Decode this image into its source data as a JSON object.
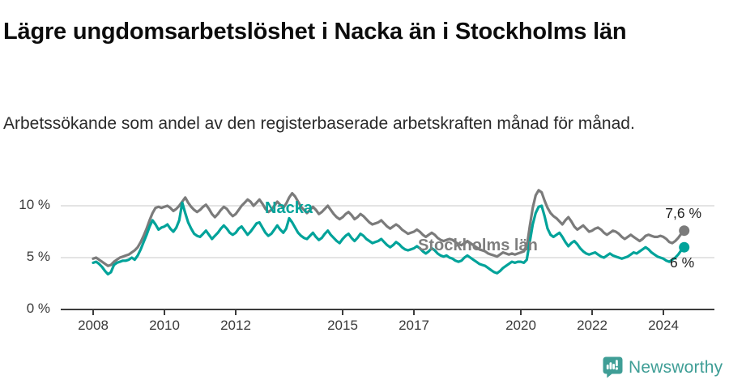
{
  "title": "Lägre ungdomsarbetslöshet i Nacka än i Stockholms län",
  "subtitle": "Arbetssökande som andel av den registerbaserade arbetskraften månad för månad.",
  "branding": {
    "logo_text": "Newsworthy",
    "color": "#3f9e96"
  },
  "chart_data": {
    "type": "line",
    "title": "Lägre ungdomsarbetslöshet i Nacka än i Stockholms län",
    "x_unit": "month",
    "x_start": {
      "year": 2008,
      "month": 1
    },
    "x_end": {
      "year": 2024,
      "month": 8
    },
    "x_axis": {
      "ticks": [
        {
          "year": 2008,
          "label": "2008"
        },
        {
          "year": 2010,
          "label": "2010"
        },
        {
          "year": 2012,
          "label": "2012"
        },
        {
          "year": 2015,
          "label": "2015"
        },
        {
          "year": 2017,
          "label": "2017"
        },
        {
          "year": 2020,
          "label": "2020"
        },
        {
          "year": 2022,
          "label": "2022"
        },
        {
          "year": 2024,
          "label": "2024"
        }
      ]
    },
    "y_axis": {
      "ticks": [
        {
          "value": 0,
          "label": "0 %"
        },
        {
          "value": 5,
          "label": "5 %"
        },
        {
          "value": 10,
          "label": "10 %"
        }
      ],
      "max": 12.5,
      "grid": true
    },
    "legend_position": "inline-labels",
    "series": [
      {
        "name": "Nacka",
        "color": "#00a39a",
        "end_label": "6 %",
        "end_value": 6.0,
        "values": [
          4.5,
          4.6,
          4.4,
          4.1,
          3.7,
          3.4,
          3.6,
          4.3,
          4.5,
          4.6,
          4.7,
          4.7,
          4.8,
          5.0,
          4.8,
          5.2,
          5.8,
          6.5,
          7.2,
          8.0,
          8.6,
          8.2,
          7.7,
          7.9,
          8.0,
          8.2,
          7.8,
          7.5,
          7.9,
          8.6,
          10.3,
          9.3,
          8.4,
          7.8,
          7.3,
          7.1,
          7.0,
          7.3,
          7.6,
          7.2,
          6.8,
          7.1,
          7.4,
          7.8,
          8.1,
          7.8,
          7.4,
          7.2,
          7.4,
          7.8,
          8.0,
          7.6,
          7.2,
          7.5,
          7.9,
          8.3,
          8.4,
          7.9,
          7.4,
          7.1,
          7.3,
          7.7,
          8.1,
          7.7,
          7.4,
          7.8,
          8.8,
          8.4,
          7.9,
          7.4,
          7.1,
          6.9,
          6.8,
          7.1,
          7.4,
          7.0,
          6.7,
          6.9,
          7.3,
          7.6,
          7.2,
          6.9,
          6.6,
          6.4,
          6.8,
          7.1,
          7.3,
          6.9,
          6.6,
          6.9,
          7.3,
          7.1,
          6.8,
          6.6,
          6.4,
          6.5,
          6.6,
          6.8,
          6.5,
          6.2,
          6.0,
          6.2,
          6.5,
          6.3,
          6.0,
          5.8,
          5.7,
          5.8,
          5.9,
          6.1,
          5.9,
          5.6,
          5.4,
          5.6,
          5.9,
          5.7,
          5.4,
          5.2,
          5.1,
          5.2,
          5.0,
          4.9,
          4.7,
          4.6,
          4.7,
          5.0,
          5.2,
          5.0,
          4.8,
          4.6,
          4.4,
          4.3,
          4.2,
          4.0,
          3.8,
          3.6,
          3.5,
          3.7,
          4.0,
          4.2,
          4.4,
          4.6,
          4.5,
          4.6,
          4.6,
          4.5,
          4.8,
          6.5,
          8.2,
          9.3,
          9.9,
          10.0,
          9.0,
          7.8,
          7.2,
          7.0,
          7.2,
          7.4,
          7.0,
          6.5,
          6.1,
          6.4,
          6.6,
          6.3,
          5.9,
          5.6,
          5.4,
          5.3,
          5.4,
          5.5,
          5.3,
          5.1,
          5.0,
          5.2,
          5.4,
          5.2,
          5.1,
          5.0,
          4.9,
          5.0,
          5.1,
          5.3,
          5.5,
          5.4,
          5.6,
          5.8,
          6.0,
          5.8,
          5.5,
          5.3,
          5.1,
          5.0,
          4.9,
          4.7,
          4.6,
          4.8,
          5.0,
          5.3,
          5.7,
          6.0
        ]
      },
      {
        "name": "Stockholms län",
        "color": "#7b7b7b",
        "end_label": "7,6 %",
        "end_value": 7.6,
        "values": [
          4.9,
          5.0,
          4.8,
          4.6,
          4.4,
          4.2,
          4.3,
          4.6,
          4.8,
          5.0,
          5.1,
          5.2,
          5.3,
          5.5,
          5.7,
          6.0,
          6.5,
          7.1,
          7.8,
          8.6,
          9.3,
          9.8,
          9.9,
          9.8,
          9.9,
          10.0,
          9.8,
          9.5,
          9.7,
          10.0,
          10.4,
          10.8,
          10.3,
          9.9,
          9.6,
          9.4,
          9.6,
          9.9,
          10.1,
          9.7,
          9.2,
          8.9,
          9.2,
          9.6,
          9.9,
          9.7,
          9.3,
          9.0,
          9.2,
          9.6,
          10.0,
          10.3,
          10.6,
          10.4,
          10.0,
          10.3,
          10.6,
          10.2,
          9.7,
          9.4,
          9.6,
          10.0,
          10.4,
          10.1,
          9.8,
          10.2,
          10.8,
          11.2,
          10.9,
          10.4,
          9.9,
          9.6,
          9.3,
          9.6,
          9.9,
          9.6,
          9.2,
          9.4,
          9.7,
          10.0,
          9.6,
          9.2,
          8.9,
          8.7,
          8.9,
          9.2,
          9.4,
          9.1,
          8.7,
          8.9,
          9.2,
          9.0,
          8.7,
          8.4,
          8.2,
          8.3,
          8.4,
          8.6,
          8.3,
          8.0,
          7.8,
          8.0,
          8.2,
          8.0,
          7.7,
          7.5,
          7.3,
          7.4,
          7.5,
          7.7,
          7.5,
          7.2,
          7.0,
          7.2,
          7.4,
          7.2,
          6.9,
          6.7,
          6.6,
          6.7,
          6.8,
          6.7,
          6.5,
          6.3,
          6.2,
          6.4,
          6.6,
          6.4,
          6.2,
          6.0,
          5.8,
          5.7,
          5.6,
          5.4,
          5.3,
          5.2,
          5.1,
          5.3,
          5.5,
          5.4,
          5.3,
          5.4,
          5.3,
          5.4,
          5.5,
          5.6,
          6.0,
          8.0,
          9.8,
          11.0,
          11.5,
          11.3,
          10.5,
          9.8,
          9.3,
          9.0,
          8.8,
          8.5,
          8.2,
          8.6,
          8.9,
          8.5,
          8.0,
          7.7,
          7.9,
          8.1,
          7.8,
          7.5,
          7.6,
          7.8,
          7.9,
          7.7,
          7.4,
          7.2,
          7.4,
          7.6,
          7.5,
          7.3,
          7.0,
          6.8,
          7.0,
          7.2,
          7.0,
          6.8,
          6.6,
          6.8,
          7.1,
          7.2,
          7.1,
          7.0,
          7.0,
          7.1,
          7.0,
          6.8,
          6.5,
          6.4,
          6.6,
          6.9,
          7.3,
          7.6
        ]
      }
    ]
  }
}
